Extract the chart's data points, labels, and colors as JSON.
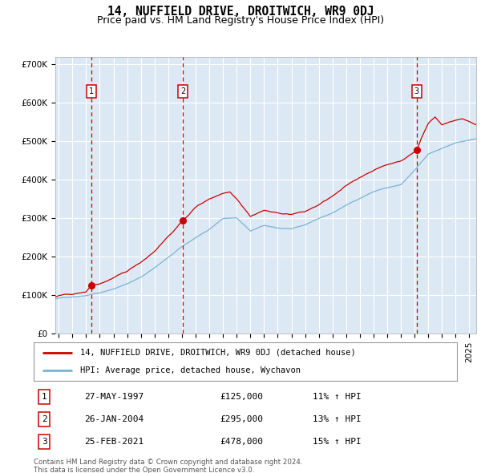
{
  "title": "14, NUFFIELD DRIVE, DROITWICH, WR9 0DJ",
  "subtitle": "Price paid vs. HM Land Registry's House Price Index (HPI)",
  "legend_line1": "14, NUFFIELD DRIVE, DROITWICH, WR9 0DJ (detached house)",
  "legend_line2": "HPI: Average price, detached house, Wychavon",
  "footer1": "Contains HM Land Registry data © Crown copyright and database right 2024.",
  "footer2": "This data is licensed under the Open Government Licence v3.0.",
  "transactions": [
    {
      "num": 1,
      "date": "27-MAY-1997",
      "price": 125000,
      "pct": "11%",
      "year": 1997.38
    },
    {
      "num": 2,
      "date": "26-JAN-2004",
      "price": 295000,
      "pct": "13%",
      "year": 2004.07
    },
    {
      "num": 3,
      "date": "25-FEB-2021",
      "price": 478000,
      "pct": "15%",
      "year": 2021.15
    }
  ],
  "ylim": [
    0,
    720000
  ],
  "xlim_start": 1994.75,
  "xlim_end": 2025.5,
  "yticks": [
    0,
    100000,
    200000,
    300000,
    400000,
    500000,
    600000,
    700000
  ],
  "ytick_labels": [
    "£0",
    "£100K",
    "£200K",
    "£300K",
    "£400K",
    "£500K",
    "£600K",
    "£700K"
  ],
  "bg_color": "#dce9f5",
  "red_line_color": "#cc0000",
  "blue_line_color": "#7ab3d4",
  "dashed_line_color": "#cc0000",
  "marker_color": "#cc0000",
  "grid_color": "#ffffff",
  "title_fontsize": 10.5,
  "subtitle_fontsize": 9,
  "tick_fontsize": 7.5,
  "hpi_control_pts": [
    [
      1994.75,
      90000
    ],
    [
      1995.0,
      92000
    ],
    [
      1995.5,
      94000
    ],
    [
      1996.0,
      96000
    ],
    [
      1997.0,
      100000
    ],
    [
      1998.0,
      108000
    ],
    [
      1999.0,
      118000
    ],
    [
      2000.0,
      132000
    ],
    [
      2001.0,
      148000
    ],
    [
      2002.0,
      172000
    ],
    [
      2003.0,
      200000
    ],
    [
      2004.0,
      228000
    ],
    [
      2005.0,
      250000
    ],
    [
      2006.0,
      272000
    ],
    [
      2007.0,
      300000
    ],
    [
      2008.0,
      300000
    ],
    [
      2009.0,
      265000
    ],
    [
      2010.0,
      278000
    ],
    [
      2011.0,
      272000
    ],
    [
      2012.0,
      270000
    ],
    [
      2013.0,
      278000
    ],
    [
      2014.0,
      295000
    ],
    [
      2015.0,
      310000
    ],
    [
      2016.0,
      330000
    ],
    [
      2017.0,
      348000
    ],
    [
      2018.0,
      365000
    ],
    [
      2019.0,
      375000
    ],
    [
      2020.0,
      382000
    ],
    [
      2021.0,
      418000
    ],
    [
      2022.0,
      460000
    ],
    [
      2023.0,
      475000
    ],
    [
      2024.0,
      490000
    ],
    [
      2025.5,
      500000
    ]
  ],
  "red_control_pts": [
    [
      1994.75,
      95000
    ],
    [
      1995.0,
      97000
    ],
    [
      1995.5,
      99000
    ],
    [
      1996.0,
      101000
    ],
    [
      1997.0,
      108000
    ],
    [
      1997.38,
      125000
    ],
    [
      1998.0,
      130000
    ],
    [
      1999.0,
      145000
    ],
    [
      2000.0,
      162000
    ],
    [
      2001.0,
      185000
    ],
    [
      2002.0,
      215000
    ],
    [
      2003.0,
      255000
    ],
    [
      2004.07,
      295000
    ],
    [
      2005.0,
      330000
    ],
    [
      2006.0,
      352000
    ],
    [
      2007.0,
      368000
    ],
    [
      2007.5,
      372000
    ],
    [
      2008.0,
      355000
    ],
    [
      2009.0,
      310000
    ],
    [
      2010.0,
      325000
    ],
    [
      2011.0,
      318000
    ],
    [
      2012.0,
      315000
    ],
    [
      2013.0,
      320000
    ],
    [
      2014.0,
      338000
    ],
    [
      2015.0,
      360000
    ],
    [
      2016.0,
      385000
    ],
    [
      2017.0,
      408000
    ],
    [
      2018.0,
      428000
    ],
    [
      2019.0,
      442000
    ],
    [
      2020.0,
      452000
    ],
    [
      2021.15,
      478000
    ],
    [
      2021.5,
      510000
    ],
    [
      2022.0,
      548000
    ],
    [
      2022.5,
      565000
    ],
    [
      2023.0,
      545000
    ],
    [
      2023.5,
      552000
    ],
    [
      2024.0,
      558000
    ],
    [
      2024.5,
      562000
    ],
    [
      2025.0,
      555000
    ],
    [
      2025.5,
      545000
    ]
  ]
}
